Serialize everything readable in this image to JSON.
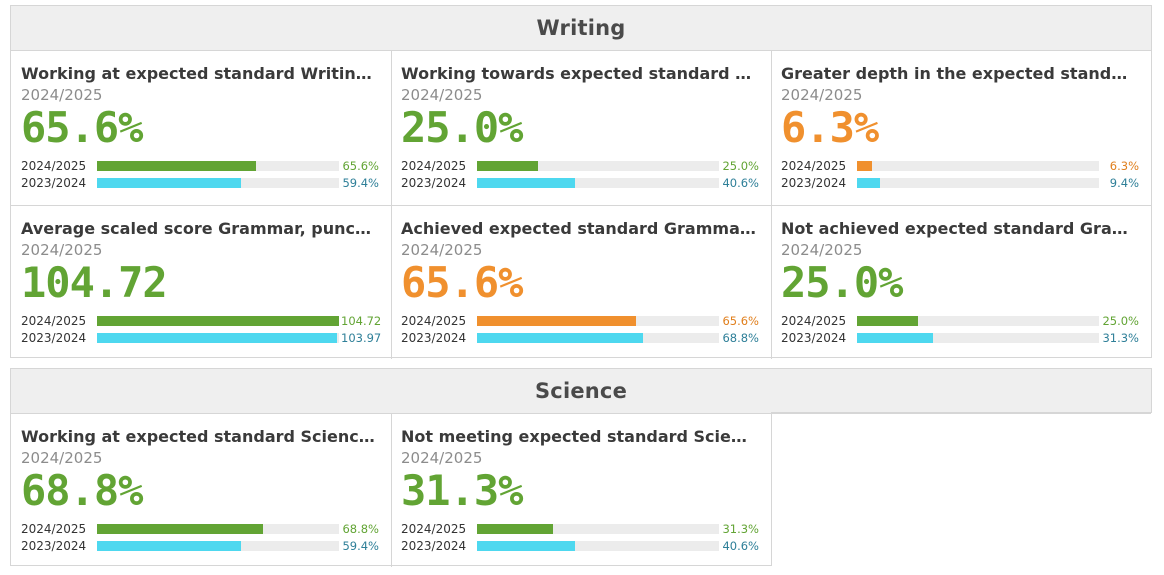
{
  "colors": {
    "green": "#62a434",
    "orange": "#f0902e",
    "cyan": "#4ed8ef"
  },
  "sections": [
    {
      "title": "Writing",
      "cards": [
        {
          "title": "Working at expected standard Writing (...",
          "year": "2024/2025",
          "value": "65.6%",
          "color": "green",
          "rows": [
            {
              "label": "2024/2025",
              "value": "65.6%",
              "fill": 0.656,
              "color": "green"
            },
            {
              "label": "2023/2024",
              "value": "59.4%",
              "fill": 0.594,
              "color": "cyan"
            }
          ]
        },
        {
          "title": "Working towards expected standard Wri...",
          "year": "2024/2025",
          "value": "25.0%",
          "color": "green",
          "rows": [
            {
              "label": "2024/2025",
              "value": "25.0%",
              "fill": 0.25,
              "color": "green"
            },
            {
              "label": "2023/2024",
              "value": "40.6%",
              "fill": 0.406,
              "color": "cyan"
            }
          ]
        },
        {
          "title": "Greater depth in the expected standard ...",
          "year": "2024/2025",
          "value": "6.3%",
          "color": "orange",
          "rows": [
            {
              "label": "2024/2025",
              "value": "6.3%",
              "fill": 0.063,
              "color": "orange"
            },
            {
              "label": "2023/2024",
              "value": "9.4%",
              "fill": 0.094,
              "color": "cyan"
            }
          ]
        },
        {
          "title": "Average scaled score Grammar, punctua...",
          "year": "2024/2025",
          "value": "104.72",
          "color": "green",
          "rows": [
            {
              "label": "2024/2025",
              "value": "104.72",
              "fill": 1.0,
              "color": "green"
            },
            {
              "label": "2023/2024",
              "value": "103.97",
              "fill": 0.993,
              "color": "cyan"
            }
          ]
        },
        {
          "title": "Achieved expected standard Grammar, p...",
          "year": "2024/2025",
          "value": "65.6%",
          "color": "orange",
          "rows": [
            {
              "label": "2024/2025",
              "value": "65.6%",
              "fill": 0.656,
              "color": "orange"
            },
            {
              "label": "2023/2024",
              "value": "68.8%",
              "fill": 0.688,
              "color": "cyan"
            }
          ]
        },
        {
          "title": "Not achieved expected standard Gramm...",
          "year": "2024/2025",
          "value": "25.0%",
          "color": "green",
          "rows": [
            {
              "label": "2024/2025",
              "value": "25.0%",
              "fill": 0.25,
              "color": "green"
            },
            {
              "label": "2023/2024",
              "value": "31.3%",
              "fill": 0.313,
              "color": "cyan"
            }
          ]
        }
      ]
    },
    {
      "title": "Science",
      "cards": [
        {
          "title": "Working at expected standard Science (...",
          "year": "2024/2025",
          "value": "68.8%",
          "color": "green",
          "rows": [
            {
              "label": "2024/2025",
              "value": "68.8%",
              "fill": 0.688,
              "color": "green"
            },
            {
              "label": "2023/2024",
              "value": "59.4%",
              "fill": 0.594,
              "color": "cyan"
            }
          ]
        },
        {
          "title": "Not meeting expected standard Science...",
          "year": "2024/2025",
          "value": "31.3%",
          "color": "green",
          "rows": [
            {
              "label": "2024/2025",
              "value": "31.3%",
              "fill": 0.313,
              "color": "green"
            },
            {
              "label": "2023/2024",
              "value": "40.6%",
              "fill": 0.406,
              "color": "cyan"
            }
          ]
        }
      ]
    }
  ]
}
